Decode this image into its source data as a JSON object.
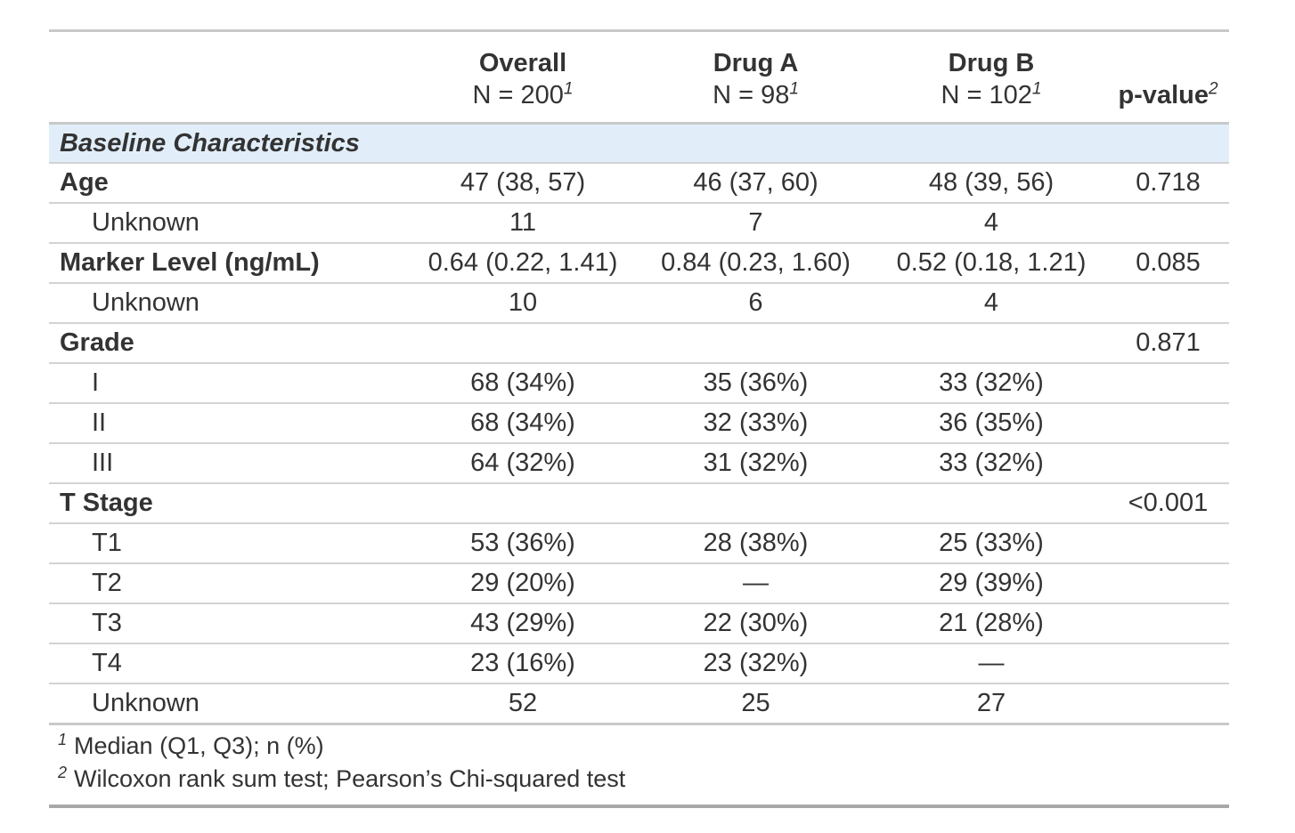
{
  "colors": {
    "section_row_bg": "#e1eefa",
    "text": "#333333",
    "row_border": "#d3d3d3",
    "outer_border": "#c9c9c9",
    "bottom_border": "#a8a8a8"
  },
  "table": {
    "columns": [
      {
        "label": "Overall",
        "sublabel": "N = 200",
        "footnote_ref": "1"
      },
      {
        "label": "Drug A",
        "sublabel": "N = 98",
        "footnote_ref": "1"
      },
      {
        "label": "Drug B",
        "sublabel": "N = 102",
        "footnote_ref": "1"
      },
      {
        "label": "p-value",
        "footnote_ref": "2"
      }
    ],
    "section_header": "Baseline Characteristics",
    "rows": [
      {
        "label": "Age",
        "overall": "47 (38, 57)",
        "drug_a": "46 (37, 60)",
        "drug_b": "48 (39, 56)",
        "p": "0.718"
      },
      {
        "label": "Unknown",
        "overall": "11",
        "drug_a": "7",
        "drug_b": "4",
        "p": ""
      },
      {
        "label": "Marker Level (ng/mL)",
        "overall": "0.64 (0.22, 1.41)",
        "drug_a": "0.84 (0.23, 1.60)",
        "drug_b": "0.52 (0.18, 1.21)",
        "p": "0.085"
      },
      {
        "label": "Unknown",
        "overall": "10",
        "drug_a": "6",
        "drug_b": "4",
        "p": ""
      },
      {
        "label": "Grade",
        "overall": "",
        "drug_a": "",
        "drug_b": "",
        "p": "0.871"
      },
      {
        "label": "I",
        "overall": "68 (34%)",
        "drug_a": "35 (36%)",
        "drug_b": "33 (32%)",
        "p": ""
      },
      {
        "label": "II",
        "overall": "68 (34%)",
        "drug_a": "32 (33%)",
        "drug_b": "36 (35%)",
        "p": ""
      },
      {
        "label": "III",
        "overall": "64 (32%)",
        "drug_a": "31 (32%)",
        "drug_b": "33 (32%)",
        "p": ""
      },
      {
        "label": "T Stage",
        "overall": "",
        "drug_a": "",
        "drug_b": "",
        "p": "<0.001"
      },
      {
        "label": "T1",
        "overall": "53 (36%)",
        "drug_a": "28 (38%)",
        "drug_b": "25 (33%)",
        "p": ""
      },
      {
        "label": "T2",
        "overall": "29 (20%)",
        "drug_a": "—",
        "drug_b": "29 (39%)",
        "p": ""
      },
      {
        "label": "T3",
        "overall": "43 (29%)",
        "drug_a": "22 (30%)",
        "drug_b": "21 (28%)",
        "p": ""
      },
      {
        "label": "T4",
        "overall": "23 (16%)",
        "drug_a": "23 (32%)",
        "drug_b": "—",
        "p": ""
      },
      {
        "label": "Unknown",
        "overall": "52",
        "drug_a": "25",
        "drug_b": "27",
        "p": ""
      }
    ],
    "footnotes": [
      {
        "marker": "1",
        "text": "Median (Q1, Q3); n (%)"
      },
      {
        "marker": "2",
        "text": "Wilcoxon rank sum test; Pearson’s Chi-squared test"
      }
    ]
  }
}
